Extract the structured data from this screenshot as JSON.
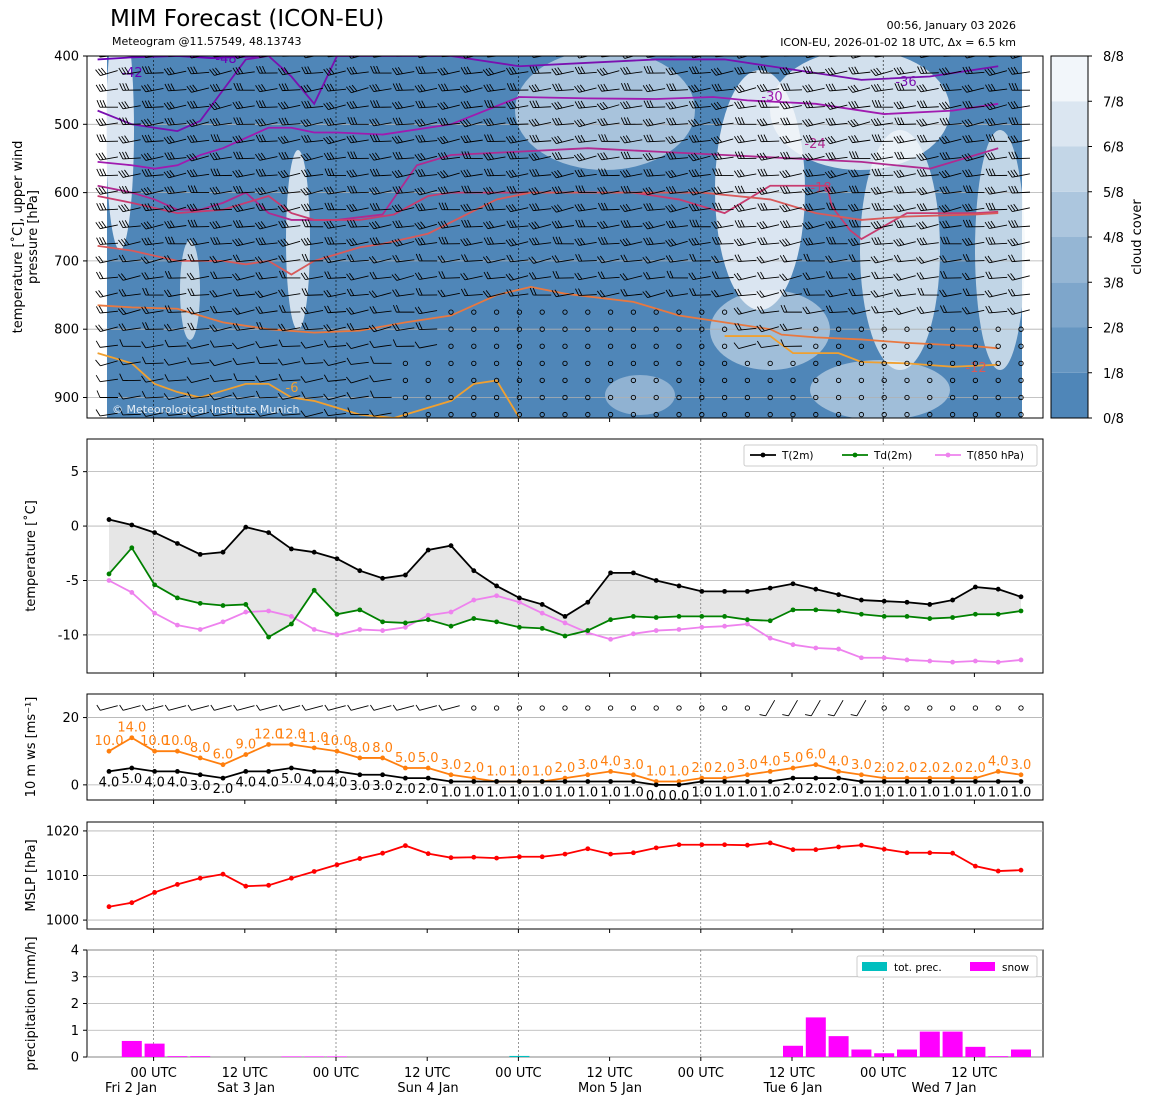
{
  "header": {
    "title": "MIM Forecast (ICON-EU)",
    "subtitle": "Meteogram @11.57549, 48.13743",
    "issued": "00:56, January 03 2026",
    "run_info": "ICON-EU, 2026-01-02 18 UTC, Δx = 6.5 km",
    "watermark": "© Meteorological Institute Munich"
  },
  "colors": {
    "t2m": "#000000",
    "td2m": "#008000",
    "t850": "#ee82ee",
    "wind_speed": "#ff7f0e",
    "mslp": "#ff0000",
    "tot_prec": "#00bfbf",
    "snow": "#ff00ff",
    "cloud_dark": "#4f86b8",
    "cloud_light": "#f2f6fa",
    "grid": "#b0b0b0",
    "fill": "#e6e6e6"
  },
  "time_axis": {
    "tick_labels": [
      "00 UTC",
      "12 UTC",
      "00 UTC",
      "12 UTC",
      "00 UTC",
      "12 UTC",
      "00 UTC",
      "12 UTC",
      "00 UTC",
      "12 UTC"
    ],
    "day_labels": [
      "Fri 2 Jan",
      "Sat 3 Jan",
      "Sun 4 Jan",
      "Mon 5 Jan",
      "Tue 6 Jan",
      "Wed 7 Jan"
    ]
  },
  "chart_data": [
    {
      "id": "upper-air",
      "type": "heatmap",
      "ylabel": "temperature [$^\\circ$C], upper wind\npressure [hPa]",
      "yticks": [
        400,
        500,
        600,
        700,
        800,
        900
      ],
      "ylim": [
        930,
        400
      ],
      "colorbar": {
        "label": "cloud cover",
        "ticks": [
          "0/8",
          "1/8",
          "2/8",
          "3/8",
          "4/8",
          "5/8",
          "6/8",
          "7/8",
          "8/8"
        ]
      },
      "isotherm_labels": [
        "-42",
        "-48",
        "-36",
        "-30",
        "-24",
        "-18",
        "-12",
        "-6"
      ],
      "isotherms": [
        {
          "t": -42,
          "x": [
            -0.5,
            1,
            3,
            4.5,
            7
          ],
          "y": [
            405,
            402,
            400,
            403,
            400
          ]
        },
        {
          "t": -36,
          "x": [
            -0.5,
            1,
            2,
            3,
            4,
            5,
            6,
            7,
            8,
            9,
            10,
            12,
            15,
            18,
            21,
            24,
            27,
            30,
            33,
            36,
            39
          ],
          "y": [
            480,
            500,
            505,
            510,
            495,
            450,
            405,
            400,
            430,
            470,
            400,
            400,
            400,
            415,
            410,
            405,
            405,
            420,
            435,
            430,
            415
          ]
        },
        {
          "t": -30,
          "x": [
            -0.5,
            1,
            2,
            3,
            4,
            5,
            6,
            7,
            8,
            9,
            10,
            12,
            15,
            18,
            21,
            24,
            26.5,
            28,
            31,
            34,
            37,
            39
          ],
          "y": [
            555,
            560,
            565,
            560,
            545,
            535,
            520,
            505,
            505,
            512,
            512,
            515,
            500,
            460,
            462,
            463,
            460,
            465,
            470,
            485,
            480,
            470
          ]
        },
        {
          "t": -24,
          "x": [
            -0.5,
            1,
            2,
            3,
            4,
            5,
            6,
            7,
            8,
            9,
            10,
            12,
            13.5,
            15,
            18,
            21,
            24,
            27,
            30,
            33,
            36,
            39
          ],
          "y": [
            590,
            600,
            610,
            625,
            625,
            615,
            600,
            630,
            640,
            640,
            640,
            632,
            560,
            545,
            540,
            535,
            540,
            545,
            550,
            555,
            565,
            535
          ]
        },
        {
          "t": -18,
          "x": [
            -0.5,
            1,
            3,
            5,
            7,
            8,
            9,
            11,
            12.5,
            14,
            15,
            17,
            20,
            23,
            25,
            27,
            29,
            31.5,
            31.7,
            32.5,
            33,
            35,
            38,
            39
          ],
          "y": [
            605,
            615,
            630,
            625,
            605,
            630,
            640,
            640,
            632,
            605,
            600,
            600,
            600,
            600,
            610,
            630,
            590,
            590,
            620,
            655,
            668,
            630,
            630,
            628
          ]
        },
        {
          "t": -12,
          "x": [
            -0.5,
            1,
            3,
            5,
            6,
            7,
            8,
            9,
            10,
            11,
            12,
            14,
            17,
            18.5,
            21,
            24,
            26,
            29,
            31,
            33,
            35,
            38,
            39
          ],
          "y": [
            678,
            685,
            700,
            700,
            705,
            700,
            720,
            700,
            690,
            680,
            675,
            660,
            610,
            600,
            600,
            600,
            600,
            610,
            630,
            640,
            635,
            632,
            630
          ]
        },
        {
          "t": -6,
          "x": [
            -0.5,
            1,
            3,
            5,
            7,
            9,
            11,
            13,
            15,
            17,
            18.5,
            20,
            23,
            25,
            27,
            29,
            29.5,
            31,
            33,
            35,
            38,
            39
          ],
          "y": [
            765,
            768,
            770,
            790,
            800,
            805,
            802,
            790,
            780,
            750,
            738,
            748,
            760,
            780,
            790,
            800,
            808,
            812,
            815,
            820,
            825,
            828
          ]
        },
        {
          "t": -6,
          "x": [
            27,
            28,
            29,
            30,
            31,
            32,
            33,
            35,
            37,
            39
          ],
          "y": [
            810,
            810,
            810,
            835,
            835,
            835,
            848,
            850,
            855,
            852
          ]
        },
        {
          "t": -6,
          "x": [
            -0.5,
            1,
            2,
            3,
            4,
            5,
            6,
            7,
            8,
            9,
            10,
            11,
            12.5,
            15,
            16,
            17,
            18
          ],
          "y": [
            835,
            850,
            880,
            892,
            900,
            890,
            880,
            880,
            900,
            905,
            915,
            925,
            930,
            905,
            880,
            875,
            930
          ]
        }
      ]
    },
    {
      "id": "temperature",
      "type": "line",
      "ylabel": "temperature [$^\\circ$C]",
      "yticks": [
        5,
        0,
        -5,
        -10
      ],
      "ylim": [
        -13.5,
        8
      ],
      "series": [
        {
          "name": "T(2m)",
          "values": [
            0.6,
            0.1,
            -0.6,
            -1.6,
            -2.6,
            -2.4,
            -0.1,
            -0.6,
            -2.1,
            -2.4,
            -3.0,
            -4.1,
            -4.8,
            -4.5,
            -2.2,
            -1.8,
            -4.1,
            -5.5,
            -6.6,
            -7.2,
            -8.3,
            -7.0,
            -4.3,
            -4.3,
            -5.0,
            -5.5,
            -6.0,
            -6.0,
            -6.0,
            -5.7,
            -5.3,
            -5.8,
            -6.3,
            -6.8,
            -6.9,
            -7.0,
            -7.2,
            -6.8,
            -5.6,
            -5.8,
            -6.5
          ]
        },
        {
          "name": "Td(2m)",
          "values": [
            -4.4,
            -2.0,
            -5.4,
            -6.6,
            -7.1,
            -7.3,
            -7.2,
            -10.2,
            -9.0,
            -5.9,
            -8.1,
            -7.7,
            -8.8,
            -8.9,
            -8.6,
            -9.2,
            -8.5,
            -8.8,
            -9.3,
            -9.4,
            -10.1,
            -9.6,
            -8.6,
            -8.3,
            -8.4,
            -8.3,
            -8.3,
            -8.3,
            -8.6,
            -8.7,
            -7.7,
            -7.7,
            -7.8,
            -8.1,
            -8.3,
            -8.3,
            -8.5,
            -8.4,
            -8.1,
            -8.1,
            -7.8
          ]
        },
        {
          "name": "T(850 hPa)",
          "values": [
            -5.0,
            -6.1,
            -8.0,
            -9.1,
            -9.5,
            -8.8,
            -7.9,
            -7.8,
            -8.3,
            -9.5,
            -10.0,
            -9.5,
            -9.6,
            -9.3,
            -8.2,
            -7.9,
            -6.8,
            -6.4,
            -7.0,
            -8.0,
            -8.9,
            -9.8,
            -10.4,
            -9.9,
            -9.6,
            -9.5,
            -9.3,
            -9.2,
            -9.0,
            -10.3,
            -10.9,
            -11.2,
            -11.3,
            -12.1,
            -12.1,
            -12.3,
            -12.4,
            -12.5,
            -12.4,
            -12.5,
            -12.3
          ]
        }
      ]
    },
    {
      "id": "wind",
      "type": "line",
      "ylabel": "10 m ws [ms$^{-1}$]",
      "yticks": [
        20,
        0
      ],
      "ylim": [
        -4.5,
        27
      ],
      "series": [
        {
          "name": "gust",
          "values": [
            10.0,
            14.0,
            10.0,
            10.0,
            8.0,
            6.0,
            9.0,
            12.0,
            12.0,
            11.0,
            10.0,
            8.0,
            8.0,
            5.0,
            5.0,
            3.0,
            2.0,
            1.0,
            1.0,
            1.0,
            2.0,
            3.0,
            4.0,
            3.0,
            1.0,
            1.0,
            2.0,
            2.0,
            3.0,
            4.0,
            5.0,
            6.0,
            4.0,
            3.0,
            2.0,
            2.0,
            2.0,
            2.0,
            2.0,
            4.0,
            3.0
          ]
        },
        {
          "name": "mean",
          "values": [
            4.0,
            5.0,
            4.0,
            4.0,
            3.0,
            2.0,
            4.0,
            4.0,
            5.0,
            4.0,
            4.0,
            3.0,
            3.0,
            2.0,
            2.0,
            1.0,
            1.0,
            1.0,
            1.0,
            1.0,
            1.0,
            1.0,
            1.0,
            1.0,
            0.0,
            0.0,
            1.0,
            1.0,
            1.0,
            1.0,
            2.0,
            2.0,
            2.0,
            1.0,
            1.0,
            1.0,
            1.0,
            1.0,
            1.0,
            1.0,
            1.0
          ]
        }
      ]
    },
    {
      "id": "mslp",
      "type": "line",
      "ylabel": "MSLP [hPa]",
      "yticks": [
        1020,
        1010,
        1000
      ],
      "ylim": [
        998,
        1022
      ],
      "series": [
        {
          "name": "MSLP",
          "values": [
            1003.0,
            1003.9,
            1006.2,
            1008.0,
            1009.4,
            1010.3,
            1007.6,
            1007.8,
            1009.4,
            1010.9,
            1012.4,
            1013.8,
            1015.0,
            1016.7,
            1014.9,
            1014.0,
            1014.1,
            1013.9,
            1014.2,
            1014.2,
            1014.8,
            1016.0,
            1014.8,
            1015.1,
            1016.2,
            1016.9,
            1016.9,
            1016.9,
            1016.8,
            1017.3,
            1015.8,
            1015.8,
            1016.4,
            1016.8,
            1015.9,
            1015.1,
            1015.1,
            1015.0,
            1012.1,
            1011.0,
            1011.2
          ]
        }
      ]
    },
    {
      "id": "precipitation",
      "type": "bar",
      "ylabel": "precipitation [mm/h]",
      "yticks": [
        4,
        3,
        2,
        1,
        0
      ],
      "ylim": [
        0,
        4
      ],
      "series": [
        {
          "name": "tot. prec.",
          "values": [
            0,
            0,
            0,
            0,
            0,
            0,
            0,
            0,
            0,
            0,
            0,
            0,
            0,
            0,
            0,
            0,
            0,
            0,
            0.04,
            0,
            0,
            0,
            0,
            0,
            0,
            0,
            0,
            0,
            0,
            0,
            0,
            0,
            0,
            0,
            0,
            0,
            0,
            0,
            0,
            0,
            0
          ]
        },
        {
          "name": "snow",
          "values": [
            0,
            0.6,
            0.5,
            0.03,
            0.03,
            0,
            0,
            0,
            0.02,
            0.02,
            0.02,
            0,
            0,
            0,
            0,
            0,
            0,
            0,
            0,
            0,
            0,
            0,
            0,
            0,
            0,
            0,
            0,
            0,
            0,
            0,
            0.42,
            1.48,
            0.78,
            0.28,
            0.14,
            0.28,
            0.95,
            0.95,
            0.38,
            0.03,
            0.28
          ]
        }
      ]
    }
  ]
}
